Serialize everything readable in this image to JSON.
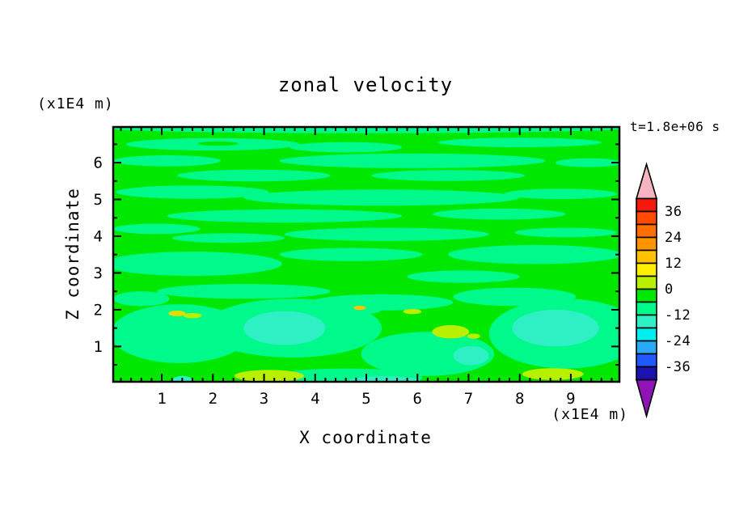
{
  "title": "zonal velocity",
  "annotations": {
    "time_label": "t=1.8e+06 s",
    "z_units_label": "(x1E4 m)",
    "x_units_label": "(x1E4 m)"
  },
  "axes": {
    "x": {
      "label": "X coordinate",
      "ticks": [
        1,
        2,
        3,
        4,
        5,
        6,
        7,
        8,
        9
      ],
      "minor_step": 0.2,
      "range": [
        0.05,
        9.95
      ]
    },
    "z": {
      "label": "Z coordinate",
      "ticks": [
        1,
        2,
        3,
        4,
        5,
        6
      ],
      "minor_step": 0.5,
      "range": [
        0.04,
        6.97
      ]
    }
  },
  "palette": {
    "gn": "#00e800",
    "sg": "#00f98b",
    "tq": "#2ef0c4",
    "ch": "#b9f000",
    "yl": "#e0dc00",
    "gd": "#ffc100"
  },
  "colorbar": {
    "labels": [
      "36",
      "24",
      "12",
      "0",
      "-12",
      "-24",
      "-36"
    ],
    "levels": [
      42,
      36,
      30,
      24,
      18,
      12,
      6,
      0,
      -6,
      -12,
      -18,
      -24,
      -30,
      -36,
      -42
    ],
    "box_colors": [
      "#f3190b",
      "#ff4a00",
      "#ff6e00",
      "#ff9400",
      "#ffc100",
      "#fff000",
      "#b9f000",
      "#00e800",
      "#00f98b",
      "#2ef0c4",
      "#00eeee",
      "#2aaaf5",
      "#1e5aff",
      "#1c12ae"
    ],
    "over_color": "#f6b4c1",
    "under_color": "#9013b8"
  },
  "chart_data": {
    "type": "heatmap",
    "subtype": "filled_contour",
    "title": "zonal velocity",
    "xlabel": "X coordinate (x1E4 m)",
    "ylabel": "Z coordinate (x1E4 m)",
    "time_annotation": "t=1.8e+06 s",
    "x_range": [
      0.05,
      9.95
    ],
    "z_range": [
      0.04,
      6.97
    ],
    "x_ticks": [
      1,
      2,
      3,
      4,
      5,
      6,
      7,
      8,
      9
    ],
    "z_ticks": [
      1,
      2,
      3,
      4,
      5,
      6
    ],
    "contour_interval": 6,
    "value_range": [
      -42,
      42
    ],
    "background_value_band": [
      0,
      6
    ],
    "field_summary": "Field is dominated by thin wavy horizontal bands alternating between 0..6 (green) and -6..0 (spring green) above z=2; below z=2 there are broader negative pockets reaching -12..-6 (turquoise) near x=2.6-4.2 z=1.1-1.9, x=6.7-7.4 z=0.5-1.0 and x=7.9-9.5 z=1.0-2.0, plus small positive patches of 6..12 (chartreuse) near the bottom boundary at x=2.4-3.8 and x=8.1-9.3 and scattered specks up to ~12-24 near z=1.3-2.1.",
    "patches": [
      {
        "x": 5.0,
        "z": 6.95,
        "rx": 5.2,
        "rz": 0.15,
        "c": "sg",
        "v": -3
      },
      {
        "x": 2.0,
        "z": 6.5,
        "rx": 1.7,
        "rz": 0.17,
        "c": "sg",
        "v": -3
      },
      {
        "x": 4.6,
        "z": 6.42,
        "rx": 1.1,
        "rz": 0.14,
        "c": "sg",
        "v": -3
      },
      {
        "x": 8.0,
        "z": 6.55,
        "rx": 1.6,
        "rz": 0.13,
        "c": "sg",
        "v": -3
      },
      {
        "x": 1.1,
        "z": 6.05,
        "rx": 1.05,
        "rz": 0.15,
        "c": "sg",
        "v": -3
      },
      {
        "x": 5.9,
        "z": 6.05,
        "rx": 2.6,
        "rz": 0.2,
        "c": "sg",
        "v": -3
      },
      {
        "x": 9.35,
        "z": 6.0,
        "rx": 0.65,
        "rz": 0.12,
        "c": "sg",
        "v": -3
      },
      {
        "x": 2.8,
        "z": 5.65,
        "rx": 1.5,
        "rz": 0.16,
        "c": "sg",
        "v": -3
      },
      {
        "x": 6.6,
        "z": 5.65,
        "rx": 1.5,
        "rz": 0.15,
        "c": "sg",
        "v": -3
      },
      {
        "x": 1.6,
        "z": 5.2,
        "rx": 1.5,
        "rz": 0.18,
        "c": "sg",
        "v": -3
      },
      {
        "x": 5.3,
        "z": 5.05,
        "rx": 2.7,
        "rz": 0.22,
        "c": "sg",
        "v": -3
      },
      {
        "x": 8.8,
        "z": 5.15,
        "rx": 1.1,
        "rz": 0.14,
        "c": "sg",
        "v": -3
      },
      {
        "x": 3.4,
        "z": 4.55,
        "rx": 2.3,
        "rz": 0.18,
        "c": "sg",
        "v": -3
      },
      {
        "x": 7.6,
        "z": 4.6,
        "rx": 1.3,
        "rz": 0.15,
        "c": "sg",
        "v": -3
      },
      {
        "x": 0.9,
        "z": 4.2,
        "rx": 0.85,
        "rz": 0.14,
        "c": "sg",
        "v": -3
      },
      {
        "x": 5.4,
        "z": 4.05,
        "rx": 2.0,
        "rz": 0.18,
        "c": "sg",
        "v": -3
      },
      {
        "x": 8.9,
        "z": 4.1,
        "rx": 1.0,
        "rz": 0.13,
        "c": "sg",
        "v": -3
      },
      {
        "x": 2.3,
        "z": 3.95,
        "rx": 1.1,
        "rz": 0.13,
        "c": "sg",
        "v": -3
      },
      {
        "x": 1.6,
        "z": 3.25,
        "rx": 1.75,
        "rz": 0.33,
        "c": "sg",
        "v": -3
      },
      {
        "x": 4.7,
        "z": 3.5,
        "rx": 1.4,
        "rz": 0.18,
        "c": "sg",
        "v": -3
      },
      {
        "x": 8.3,
        "z": 3.5,
        "rx": 1.7,
        "rz": 0.26,
        "c": "sg",
        "v": -3
      },
      {
        "x": 2.6,
        "z": 2.5,
        "rx": 1.7,
        "rz": 0.2,
        "c": "sg",
        "v": -3
      },
      {
        "x": 6.9,
        "z": 2.9,
        "rx": 1.1,
        "rz": 0.17,
        "c": "sg",
        "v": -3
      },
      {
        "x": 5.3,
        "z": 2.2,
        "rx": 1.4,
        "rz": 0.22,
        "c": "sg",
        "v": -3
      },
      {
        "x": 7.9,
        "z": 2.35,
        "rx": 1.2,
        "rz": 0.25,
        "c": "sg",
        "v": -3
      },
      {
        "x": 0.6,
        "z": 2.3,
        "rx": 0.55,
        "rz": 0.2,
        "c": "sg",
        "v": -3
      },
      {
        "x": 4.4,
        "z": 2.0,
        "rx": 0.9,
        "rz": 0.18,
        "c": "sg",
        "v": -3
      },
      {
        "x": 2.1,
        "z": 6.52,
        "rx": 0.4,
        "rz": 0.06,
        "c": "gn",
        "v": 3
      },
      {
        "x": 4.8,
        "z": 2.95,
        "rx": 0.9,
        "rz": 0.1,
        "c": "gn",
        "v": 3
      },
      {
        "x": 1.35,
        "z": 1.35,
        "rx": 1.35,
        "rz": 0.8,
        "c": "sg",
        "v": -3
      },
      {
        "x": 3.55,
        "z": 1.5,
        "rx": 1.75,
        "rz": 0.8,
        "c": "sg",
        "v": -3
      },
      {
        "x": 3.4,
        "z": 1.5,
        "rx": 0.8,
        "rz": 0.46,
        "c": "tq",
        "v": -9
      },
      {
        "x": 8.9,
        "z": 1.35,
        "rx": 1.5,
        "rz": 0.95,
        "c": "sg",
        "v": -3
      },
      {
        "x": 8.7,
        "z": 1.5,
        "rx": 0.85,
        "rz": 0.5,
        "c": "tq",
        "v": -9
      },
      {
        "x": 6.2,
        "z": 0.8,
        "rx": 1.3,
        "rz": 0.6,
        "c": "sg",
        "v": -3
      },
      {
        "x": 7.05,
        "z": 0.75,
        "rx": 0.35,
        "rz": 0.26,
        "c": "tq",
        "v": -9
      },
      {
        "x": 4.6,
        "z": 0.15,
        "rx": 1.5,
        "rz": 0.25,
        "c": "sg",
        "v": -3
      },
      {
        "x": 5.35,
        "z": 0.07,
        "rx": 0.7,
        "rz": 0.12,
        "c": "tq",
        "v": -9
      },
      {
        "x": 1.4,
        "z": 0.1,
        "rx": 0.18,
        "rz": 0.1,
        "c": "tq",
        "v": -9
      },
      {
        "x": 3.1,
        "z": 0.2,
        "rx": 0.68,
        "rz": 0.16,
        "c": "ch",
        "v": 9
      },
      {
        "x": 8.65,
        "z": 0.25,
        "rx": 0.6,
        "rz": 0.16,
        "c": "ch",
        "v": 9
      },
      {
        "x": 1.3,
        "z": 1.9,
        "rx": 0.17,
        "rz": 0.08,
        "c": "yl",
        "v": 15
      },
      {
        "x": 1.6,
        "z": 1.84,
        "rx": 0.18,
        "rz": 0.07,
        "c": "ch",
        "v": 9
      },
      {
        "x": 4.87,
        "z": 2.05,
        "rx": 0.12,
        "rz": 0.06,
        "c": "gd",
        "v": 21
      },
      {
        "x": 5.9,
        "z": 1.95,
        "rx": 0.18,
        "rz": 0.07,
        "c": "ch",
        "v": 9
      },
      {
        "x": 6.65,
        "z": 1.4,
        "rx": 0.36,
        "rz": 0.18,
        "c": "ch",
        "v": 9
      },
      {
        "x": 7.1,
        "z": 1.28,
        "rx": 0.13,
        "rz": 0.07,
        "c": "ch",
        "v": 9
      }
    ]
  }
}
